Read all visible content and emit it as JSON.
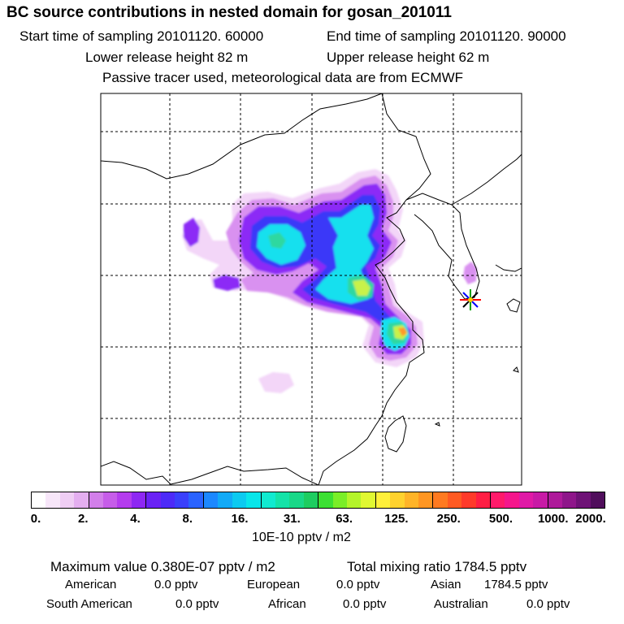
{
  "header": {
    "title": "BC  source contributions in nested domain for gosan_201011",
    "start_label": "Start time of sampling 20101120. 60000",
    "end_label": "End time of sampling 20101120. 90000",
    "lower_label": "Lower release height   82 m",
    "upper_label": "Upper release height   62 m",
    "note": "Passive tracer used, meteorological data are from ECMWF"
  },
  "map": {
    "receptor_marker": "star-marker",
    "plume_colors": [
      "#f3d6f8",
      "#d991f0",
      "#8c2cf6",
      "#3a38f8",
      "#2aa0ff",
      "#15e0ee",
      "#2ed8a0",
      "#c8f24a",
      "#ff9a2a"
    ]
  },
  "colorbar": {
    "colors": [
      "#ffffff",
      "#f7e6f9",
      "#efcdf4",
      "#e4aef0",
      "#d27fea",
      "#c65de9",
      "#b43cee",
      "#8e27f3",
      "#6a22f5",
      "#4d2af8",
      "#3a40fb",
      "#2a63ff",
      "#1c88ff",
      "#12aaf7",
      "#0ccaf0",
      "#08e6ea",
      "#10ead0",
      "#14e3a8",
      "#19d888",
      "#1ecd60",
      "#3ce033",
      "#7aee27",
      "#b4f42a",
      "#e0f832",
      "#fff03a",
      "#ffd22e",
      "#ffb428",
      "#ff9622",
      "#ff7a20",
      "#ff5a22",
      "#ff3a2a",
      "#ff1e44",
      "#ff1a6a",
      "#f5168c",
      "#e01aa6",
      "#c81aa6",
      "#ae1a9a",
      "#8e168a",
      "#6e1276",
      "#500e5c"
    ],
    "ticks": [
      "0.",
      "2.",
      "4.",
      "8.",
      "16.",
      "31.",
      "63.",
      "125.",
      "250.",
      "500.",
      "1000.",
      "2000."
    ],
    "units": "10E-10 pptv / m2"
  },
  "summary": {
    "max_value": "Maximum value  0.380E-07 pptv / m2",
    "total_mixing": "Total mixing ratio     1784.5 pptv",
    "american_label": "American",
    "american_value": "0.0 pptv",
    "european_label": "European",
    "european_value": "0.0 pptv",
    "asian_label": "Asian",
    "asian_value": "1784.5 pptv",
    "south_american_label": "South American",
    "south_american_value": "0.0 pptv",
    "african_label": "African",
    "african_value": "0.0 pptv",
    "australian_label": "Australian",
    "australian_value": "0.0 pptv"
  }
}
